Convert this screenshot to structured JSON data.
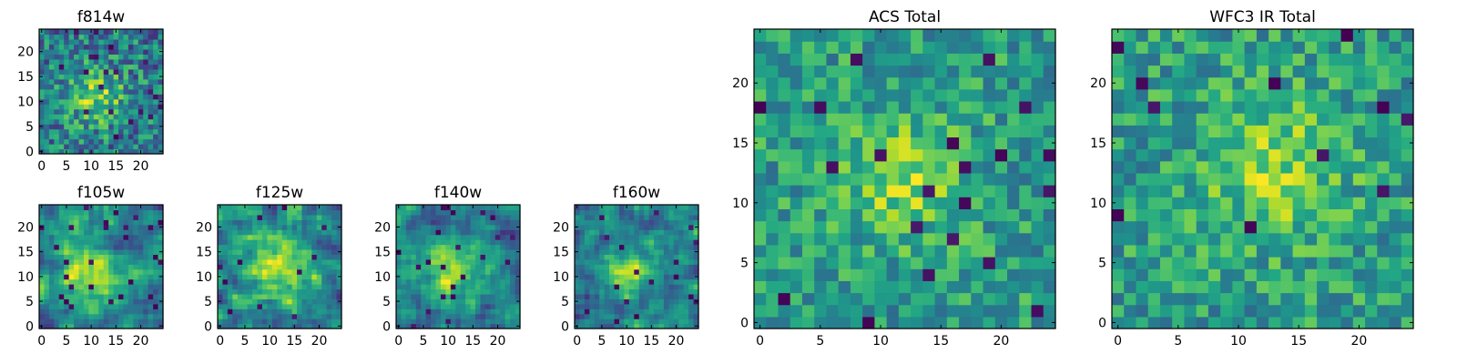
{
  "chart_data": [
    {
      "type": "heatmap",
      "title": "f814w",
      "grid": [
        25,
        25
      ],
      "xticks": [
        0,
        5,
        10,
        15,
        20
      ],
      "yticks": [
        0,
        5,
        10,
        15,
        20
      ],
      "xlim": [
        0,
        25
      ],
      "ylim": [
        0,
        25
      ],
      "colormap": "viridis",
      "pattern": "fine",
      "peak": [
        11,
        11
      ],
      "sigma": 4.0,
      "seed": 3
    },
    {
      "type": "heatmap",
      "title": "f105w",
      "grid": [
        25,
        25
      ],
      "xticks": [
        0,
        5,
        10,
        15,
        20
      ],
      "yticks": [
        0,
        5,
        10,
        15,
        20
      ],
      "xlim": [
        0,
        25
      ],
      "ylim": [
        0,
        25
      ],
      "colormap": "viridis",
      "pattern": "smooth",
      "peak": [
        10,
        10
      ],
      "sigma": 5.0,
      "seed": 11
    },
    {
      "type": "heatmap",
      "title": "f125w",
      "grid": [
        25,
        25
      ],
      "xticks": [
        0,
        5,
        10,
        15,
        20
      ],
      "yticks": [
        0,
        5,
        10,
        15,
        20
      ],
      "xlim": [
        0,
        25
      ],
      "ylim": [
        0,
        25
      ],
      "colormap": "viridis",
      "pattern": "smooth",
      "peak": [
        11,
        12
      ],
      "sigma": 5.0,
      "seed": 23
    },
    {
      "type": "heatmap",
      "title": "f140w",
      "grid": [
        25,
        25
      ],
      "xticks": [
        0,
        5,
        10,
        15,
        20
      ],
      "yticks": [
        0,
        5,
        10,
        15,
        20
      ],
      "xlim": [
        0,
        25
      ],
      "ylim": [
        0,
        25
      ],
      "colormap": "viridis",
      "pattern": "smooth",
      "peak": [
        11,
        11
      ],
      "sigma": 4.5,
      "seed": 37
    },
    {
      "type": "heatmap",
      "title": "f160w",
      "grid": [
        25,
        25
      ],
      "xticks": [
        0,
        5,
        10,
        15,
        20
      ],
      "yticks": [
        0,
        5,
        10,
        15,
        20
      ],
      "xlim": [
        0,
        25
      ],
      "ylim": [
        0,
        25
      ],
      "colormap": "viridis",
      "pattern": "smooth",
      "peak": [
        11,
        11
      ],
      "sigma": 3.5,
      "seed": 41
    },
    {
      "type": "heatmap",
      "title": "ACS Total",
      "grid": [
        25,
        25
      ],
      "xticks": [
        0,
        5,
        10,
        15,
        20
      ],
      "yticks": [
        0,
        5,
        10,
        15,
        20
      ],
      "xlim": [
        0,
        25
      ],
      "ylim": [
        0,
        25
      ],
      "colormap": "viridis",
      "pattern": "blocky",
      "peak": [
        12,
        12
      ],
      "sigma": 3.5,
      "seed": 53
    },
    {
      "type": "heatmap",
      "title": "WFC3 IR Total",
      "grid": [
        25,
        25
      ],
      "xticks": [
        0,
        5,
        10,
        15,
        20
      ],
      "yticks": [
        0,
        5,
        10,
        15,
        20
      ],
      "xlim": [
        0,
        25
      ],
      "ylim": [
        0,
        25
      ],
      "colormap": "viridis",
      "pattern": "blocky",
      "peak": [
        13,
        13
      ],
      "sigma": 4.0,
      "seed": 67
    }
  ]
}
